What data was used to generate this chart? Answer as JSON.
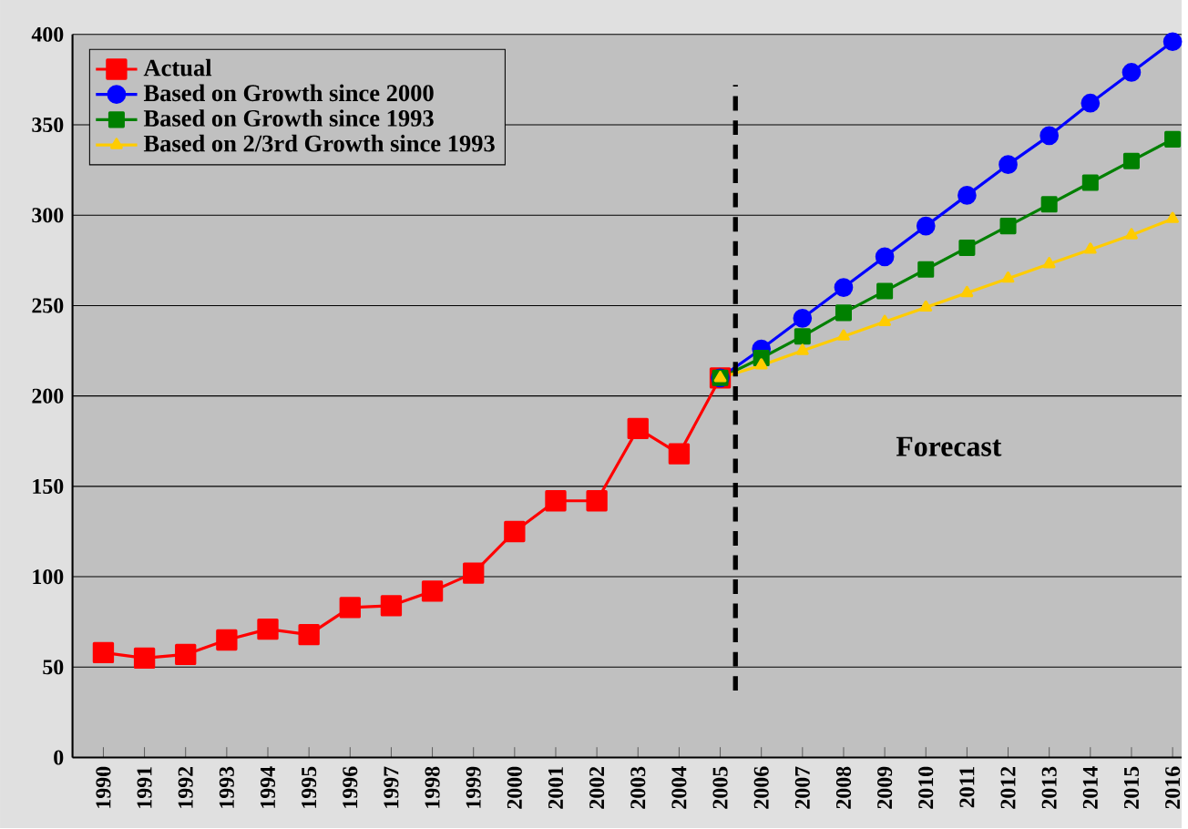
{
  "chart_data": {
    "type": "line",
    "x": [
      1990,
      1991,
      1992,
      1993,
      1994,
      1995,
      1996,
      1997,
      1998,
      1999,
      2000,
      2001,
      2002,
      2003,
      2004,
      2005,
      2006,
      2007,
      2008,
      2009,
      2010,
      2011,
      2012,
      2013,
      2014,
      2015,
      2016
    ],
    "series": [
      {
        "name": "Actual",
        "color": "#ff0000",
        "marker": "square",
        "values": [
          58,
          55,
          57,
          65,
          71,
          68,
          83,
          84,
          92,
          102,
          125,
          142,
          142,
          182,
          168,
          210,
          null,
          null,
          null,
          null,
          null,
          null,
          null,
          null,
          null,
          null,
          null
        ]
      },
      {
        "name": "Based on Growth since 2000",
        "color": "#0000ff",
        "marker": "circle",
        "values": [
          null,
          null,
          null,
          null,
          null,
          null,
          null,
          null,
          null,
          null,
          null,
          null,
          null,
          null,
          null,
          210,
          226,
          243,
          260,
          277,
          294,
          311,
          328,
          344,
          362,
          379,
          396
        ]
      },
      {
        "name": "Based on Growth since 1993",
        "color": "#008000",
        "marker": "square",
        "values": [
          null,
          null,
          null,
          null,
          null,
          null,
          null,
          null,
          null,
          null,
          null,
          null,
          null,
          null,
          null,
          210,
          221,
          233,
          246,
          258,
          270,
          282,
          294,
          306,
          318,
          330,
          342
        ]
      },
      {
        "name": "Based on 2/3rd Growth since 1993",
        "color": "#ffcc00",
        "marker": "triangle",
        "values": [
          null,
          null,
          null,
          null,
          null,
          null,
          null,
          null,
          null,
          null,
          null,
          null,
          null,
          null,
          null,
          210,
          217,
          225,
          233,
          241,
          249,
          257,
          265,
          273,
          281,
          289,
          298
        ]
      }
    ],
    "xlim": [
      1989.25,
      2016.22
    ],
    "xticks": [
      1990,
      1991,
      1992,
      1993,
      1994,
      1995,
      1996,
      1997,
      1998,
      1999,
      2000,
      2001,
      2002,
      2003,
      2004,
      2005,
      2006,
      2007,
      2008,
      2009,
      2010,
      2011,
      2012,
      2013,
      2014,
      2015,
      2016
    ],
    "ylim": [
      0,
      400
    ],
    "yticks": [
      0,
      50,
      100,
      150,
      200,
      250,
      300,
      350,
      400
    ],
    "grid": "y",
    "legend": "top left",
    "line_style": "solid",
    "ref_lines": [
      {
        "axis": "x",
        "value": 2005.37,
        "line_style": "dashed",
        "color": "#000000"
      }
    ],
    "annotations": [
      "Forecast"
    ]
  }
}
